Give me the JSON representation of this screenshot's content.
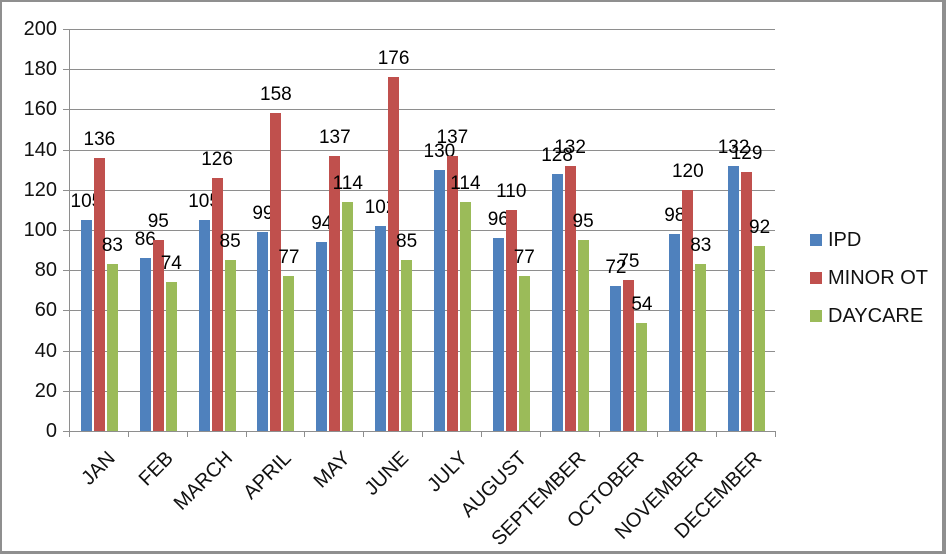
{
  "chart_data": {
    "type": "bar",
    "title": "",
    "categories": [
      "JAN",
      "FEB",
      "MARCH",
      "APRIL",
      "MAY",
      "JUNE",
      "JULY",
      "AUGUST",
      "SEPTEMBER",
      "OCTOBER",
      "NOVEMBER",
      "DECEMBER"
    ],
    "series": [
      {
        "name": "IPD",
        "color": "#4F81BD",
        "values": [
          105,
          86,
          105,
          99,
          94,
          102,
          130,
          96,
          128,
          72,
          98,
          132
        ]
      },
      {
        "name": "MINOR OT",
        "color": "#C0504D",
        "values": [
          136,
          95,
          126,
          158,
          137,
          176,
          137,
          110,
          132,
          75,
          120,
          129
        ]
      },
      {
        "name": "DAYCARE",
        "color": "#9BBB59",
        "values": [
          83,
          74,
          85,
          77,
          114,
          85,
          114,
          77,
          95,
          54,
          83,
          92
        ]
      }
    ],
    "ylim": [
      0,
      200
    ],
    "yticks": [
      0,
      20,
      40,
      60,
      80,
      100,
      120,
      140,
      160,
      180,
      200
    ],
    "grid": true,
    "legend_position": "right",
    "data_labels": true,
    "xlabel": "",
    "ylabel": ""
  },
  "colors": {
    "gridline": "#8e8e8e",
    "axis": "#8e8e8e",
    "text": "#111111",
    "frame_border": "#8f8f8f",
    "background": "#ffffff"
  }
}
